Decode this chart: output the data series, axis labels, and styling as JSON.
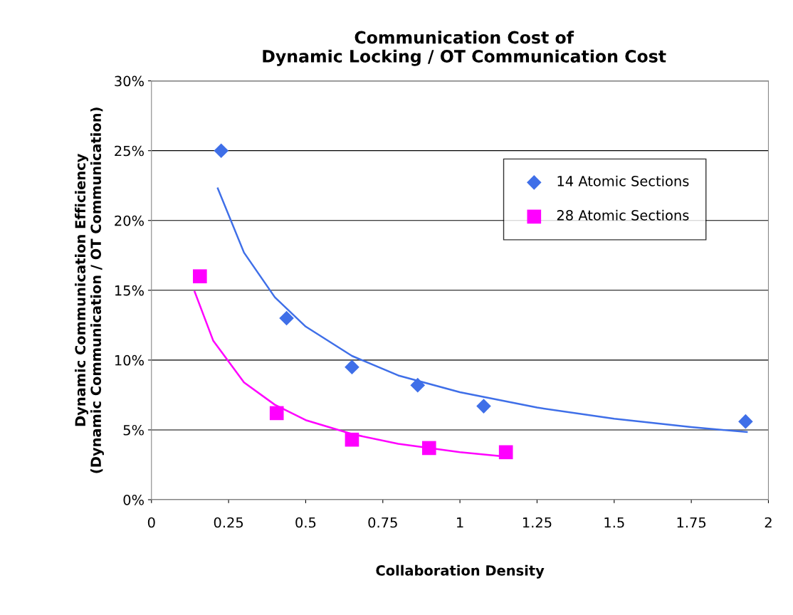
{
  "chart_data": {
    "type": "scatter",
    "title": "Communication Cost of\nDynamic Locking / OT Communication Cost",
    "xlabel": "Collaboration Density",
    "ylabel": "Dynamic Communication Efficiency\n(Dynamic Communication / OT Communication)",
    "xlim": [
      0,
      2
    ],
    "xticks": [
      0,
      0.25,
      0.5,
      0.75,
      1,
      1.25,
      1.5,
      1.75,
      2
    ],
    "ylim": [
      0,
      30
    ],
    "yticks": [
      {
        "value": 0,
        "label": "0%"
      },
      {
        "value": 5,
        "label": "5%"
      },
      {
        "value": 10,
        "label": "10%"
      },
      {
        "value": 15,
        "label": "15%"
      },
      {
        "value": 20,
        "label": "20%"
      },
      {
        "value": 25,
        "label": "25%"
      },
      {
        "value": 30,
        "label": "30%"
      }
    ],
    "grid": "y",
    "legend": "top right",
    "series": [
      {
        "name": "14 Atomic Sections",
        "color": "#3f6fe8",
        "marker": "diamond",
        "x": [
          0.226,
          0.438,
          0.65,
          0.863,
          1.077,
          1.926
        ],
        "values": [
          25.0,
          13.0,
          9.5,
          8.2,
          6.7,
          5.6
        ]
      },
      {
        "name": "28 Atomic Sections",
        "color": "#ff00ff",
        "marker": "square",
        "x": [
          0.157,
          0.406,
          0.65,
          0.9,
          1.149
        ],
        "values": [
          16.0,
          6.2,
          4.3,
          3.7,
          3.4
        ]
      },
      {
        "type": "line",
        "color": "#3f6fe8",
        "marker": "none",
        "x": [
          0.215,
          0.3,
          0.4,
          0.5,
          0.65,
          0.8,
          1.0,
          1.25,
          1.5,
          1.75,
          1.93
        ],
        "values": [
          22.3,
          17.7,
          14.5,
          12.4,
          10.3,
          8.9,
          7.7,
          6.6,
          5.8,
          5.2,
          4.85
        ]
      },
      {
        "type": "line",
        "color": "#ff00ff",
        "marker": "none",
        "x": [
          0.14,
          0.2,
          0.3,
          0.4,
          0.5,
          0.65,
          0.8,
          1.0,
          1.14
        ],
        "values": [
          14.9,
          11.4,
          8.4,
          6.8,
          5.7,
          4.7,
          4.0,
          3.4,
          3.1
        ]
      }
    ]
  }
}
